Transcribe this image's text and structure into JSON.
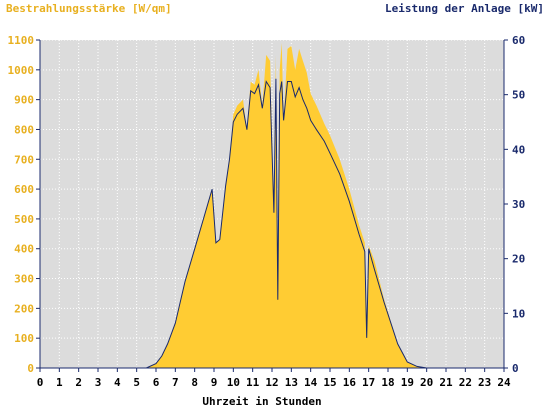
{
  "chart_data": {
    "type": "area",
    "left_axis_title": "Bestrahlungsstärke [W/qm]",
    "right_axis_title": "Leistung der Anlage [kW]",
    "xlabel": "Uhrzeit in Stunden",
    "xlim": [
      0,
      24
    ],
    "y_left_lim": [
      0,
      1100
    ],
    "y_right_lim": [
      0,
      60
    ],
    "x_ticks": [
      "0",
      "1",
      "2",
      "3",
      "4",
      "5",
      "6",
      "7",
      "8",
      "9",
      "10",
      "11",
      "12",
      "13",
      "14",
      "15",
      "16",
      "17",
      "18",
      "19",
      "20",
      "21",
      "22",
      "23",
      "24"
    ],
    "y_left_ticks": [
      "0",
      "100",
      "200",
      "300",
      "400",
      "500",
      "600",
      "700",
      "800",
      "900",
      "1000",
      "1100"
    ],
    "y_right_ticks": [
      "0",
      "10",
      "20",
      "30",
      "40",
      "50",
      "60"
    ],
    "colors": {
      "irradiance": "#ffcc33",
      "power": "#1a2a6c",
      "plot_background": "#dcdcdc",
      "axis": "#1a2a6c",
      "left_axis_text": "#e8b020",
      "right_axis_text": "#1a2a6c",
      "grid": "#ffffff"
    },
    "grid": true,
    "series": [
      {
        "name": "Bestrahlungsstärke",
        "axis": "left",
        "style": "area",
        "x": [
          0,
          5.5,
          6.0,
          6.3,
          6.6,
          7.0,
          7.5,
          8.0,
          8.5,
          8.9,
          9.1,
          9.3,
          9.6,
          9.8,
          10.0,
          10.2,
          10.5,
          10.7,
          10.9,
          11.1,
          11.3,
          11.5,
          11.7,
          11.9,
          12.1,
          12.2,
          12.3,
          12.4,
          12.5,
          12.6,
          12.8,
          13.0,
          13.2,
          13.4,
          13.6,
          13.8,
          14.0,
          14.3,
          14.7,
          15.0,
          15.5,
          16.0,
          16.5,
          16.8,
          16.9,
          17.0,
          17.3,
          17.8,
          18.5,
          19.0,
          19.5,
          20.0,
          24
        ],
        "y": [
          0,
          0,
          15,
          40,
          80,
          150,
          290,
          400,
          510,
          600,
          420,
          430,
          610,
          700,
          850,
          880,
          900,
          800,
          960,
          950,
          1000,
          880,
          1050,
          1030,
          520,
          1050,
          230,
          1000,
          1090,
          830,
          1070,
          1080,
          1000,
          1070,
          1030,
          990,
          920,
          880,
          820,
          780,
          700,
          600,
          480,
          420,
          100,
          410,
          360,
          230,
          80,
          20,
          5,
          0,
          0
        ]
      },
      {
        "name": "Leistung der Anlage",
        "axis": "right",
        "style": "line",
        "x": [
          0,
          5.5,
          6.0,
          6.3,
          6.6,
          7.0,
          7.5,
          8.0,
          8.5,
          8.9,
          9.1,
          9.3,
          9.6,
          9.8,
          10.0,
          10.2,
          10.5,
          10.7,
          10.9,
          11.1,
          11.3,
          11.5,
          11.7,
          11.9,
          12.1,
          12.2,
          12.3,
          12.4,
          12.5,
          12.6,
          12.8,
          13.0,
          13.2,
          13.4,
          13.6,
          13.8,
          14.0,
          14.3,
          14.7,
          15.0,
          15.5,
          16.0,
          16.5,
          16.8,
          16.9,
          17.0,
          17.3,
          17.8,
          18.5,
          19.0,
          19.5,
          20.0,
          24
        ],
        "y": [
          0,
          0,
          0.8,
          2.2,
          4.4,
          8.2,
          15.8,
          21.8,
          27.8,
          32.7,
          22.9,
          23.5,
          33.3,
          38.2,
          45.0,
          46.4,
          47.5,
          43.6,
          50.7,
          50.2,
          51.8,
          47.5,
          52.4,
          51.3,
          28.4,
          52.9,
          12.5,
          50.2,
          52.4,
          45.3,
          52.4,
          52.4,
          49.6,
          51.3,
          49.1,
          47.5,
          45.3,
          43.6,
          41.5,
          39.3,
          35.5,
          30.5,
          24.5,
          21.3,
          5.5,
          21.8,
          18.0,
          12.0,
          4.4,
          1.1,
          0.3,
          0,
          0
        ]
      }
    ]
  }
}
